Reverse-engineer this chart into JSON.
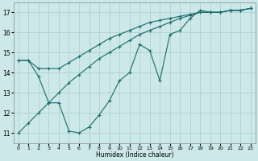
{
  "xlabel": "Humidex (Indice chaleur)",
  "xlim": [
    -0.5,
    23.5
  ],
  "ylim": [
    10.5,
    17.5
  ],
  "xticks": [
    0,
    1,
    2,
    3,
    4,
    5,
    6,
    7,
    8,
    9,
    10,
    11,
    12,
    13,
    14,
    15,
    16,
    17,
    18,
    19,
    20,
    21,
    22,
    23
  ],
  "yticks": [
    11,
    12,
    13,
    14,
    15,
    16,
    17
  ],
  "bg_color": "#cce8e8",
  "line_color": "#1a6b6b",
  "grid_color": "#aacece",
  "line1_x": [
    0,
    1,
    2,
    3,
    4,
    5,
    6,
    7,
    8,
    9,
    10,
    11,
    12,
    13,
    14,
    15,
    16,
    17,
    18,
    19,
    20,
    21,
    22,
    23
  ],
  "line1_y": [
    14.6,
    14.6,
    13.8,
    12.5,
    12.5,
    11.1,
    11.0,
    11.3,
    11.9,
    12.6,
    13.6,
    14.0,
    15.4,
    15.1,
    13.6,
    15.9,
    16.1,
    16.7,
    17.1,
    17.0,
    17.0,
    17.1,
    17.1,
    17.2
  ],
  "line2_x": [
    0,
    1,
    2,
    3,
    4,
    5,
    6,
    7,
    8,
    9,
    10,
    11,
    12,
    13,
    14,
    15,
    16,
    17,
    18,
    19,
    20,
    21,
    22,
    23
  ],
  "line2_y": [
    11.0,
    11.5,
    12.0,
    12.5,
    13.0,
    13.5,
    13.9,
    14.3,
    14.7,
    15.0,
    15.3,
    15.6,
    15.9,
    16.1,
    16.3,
    16.5,
    16.7,
    16.85,
    17.0,
    17.0,
    17.0,
    17.1,
    17.1,
    17.2
  ],
  "line3_x": [
    0,
    1,
    2,
    3,
    4,
    5,
    6,
    7,
    8,
    9,
    10,
    11,
    12,
    13,
    14,
    15,
    16,
    17,
    18,
    19,
    20,
    21,
    22,
    23
  ],
  "line3_y": [
    14.6,
    14.6,
    14.2,
    14.2,
    14.2,
    14.5,
    14.8,
    15.1,
    15.4,
    15.7,
    15.9,
    16.1,
    16.3,
    16.5,
    16.6,
    16.7,
    16.8,
    16.9,
    17.0,
    17.0,
    17.0,
    17.1,
    17.1,
    17.2
  ]
}
